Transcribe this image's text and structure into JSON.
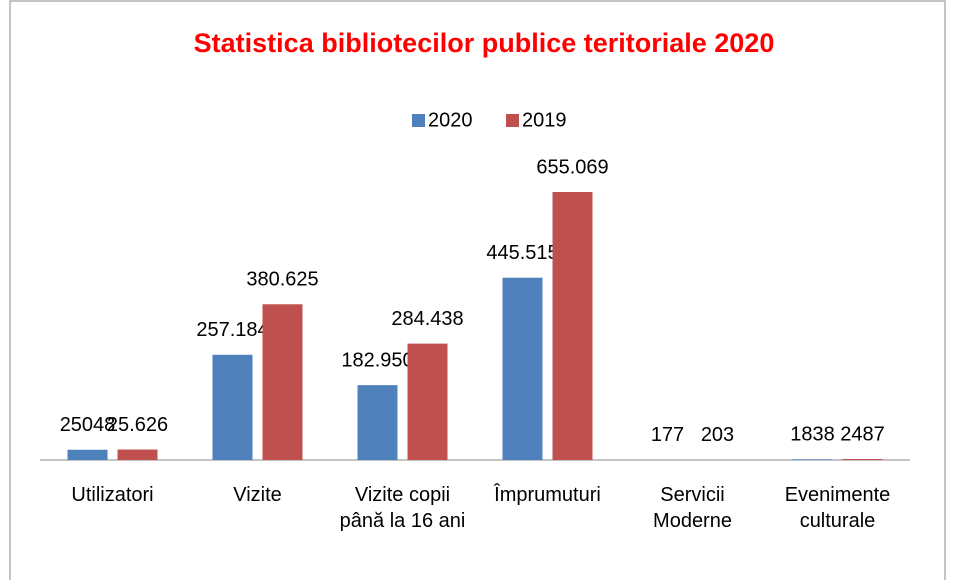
{
  "chart_data": {
    "type": "bar",
    "title": "Statistica bibliotecilor publice teritoriale 2020",
    "categories": [
      "Utilizatori",
      "Vizite",
      "Vizite copii până la 16 ani",
      "Împrumuturi",
      "Servicii Moderne",
      "Evenimente culturale"
    ],
    "series": [
      {
        "name": "2020",
        "color": "#4f81bd",
        "values": [
          25048,
          257184,
          182950,
          445515,
          177,
          1838
        ],
        "value_labels": [
          "25048",
          "257.184",
          "182.950",
          "445.515",
          "177",
          "1838"
        ]
      },
      {
        "name": "2019",
        "color": "#c0504d",
        "values": [
          25626,
          380625,
          284438,
          655069,
          203,
          2487
        ],
        "value_labels": [
          "25.626",
          "380.625",
          "284.438",
          "655.069",
          "203",
          "2487"
        ]
      }
    ],
    "ylim": [
      0,
      700000
    ],
    "legend": "top"
  }
}
